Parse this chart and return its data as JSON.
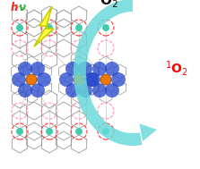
{
  "background_color": "#ffffff",
  "hv_h_color": "#ff2222",
  "hv_nu_color": "#22bb22",
  "o3_color": "#111111",
  "o1_color": "#ff0000",
  "arrow_color": "#66d9d9",
  "lightning_fill": "#ffff44",
  "lightning_edge": "#cccc00",
  "teal_color": "#44ccaa",
  "orange_color": "#ee7700",
  "blue_color": "#2244cc",
  "red_color": "#ff3333",
  "gray_color": "#999999",
  "pink_color": "#ff88aa",
  "figsize": [
    2.23,
    1.89
  ],
  "dpi": 100
}
